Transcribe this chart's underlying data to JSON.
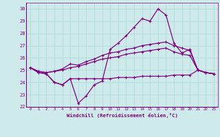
{
  "xlabel": "Windchill (Refroidissement éolien,°C)",
  "xlim": [
    -0.5,
    23.5
  ],
  "ylim": [
    22,
    30.5
  ],
  "xticks": [
    0,
    1,
    2,
    3,
    4,
    5,
    6,
    7,
    8,
    9,
    10,
    11,
    12,
    13,
    14,
    15,
    16,
    17,
    18,
    19,
    20,
    21,
    22,
    23
  ],
  "yticks": [
    22,
    23,
    24,
    25,
    26,
    27,
    28,
    29,
    30
  ],
  "bg_color": "#ceeaea",
  "line_color": "#800080",
  "grid_color": "#a8d8d8",
  "series1_x": [
    0,
    1,
    2,
    3,
    4,
    5,
    6,
    7,
    8,
    9,
    10,
    11,
    12,
    13,
    14,
    15,
    16,
    17,
    18,
    19,
    20,
    21,
    22,
    23
  ],
  "series1_y": [
    25.2,
    24.8,
    24.7,
    24.0,
    23.8,
    24.3,
    22.3,
    22.9,
    23.8,
    24.1,
    26.7,
    27.2,
    27.8,
    28.5,
    29.2,
    29.0,
    30.0,
    29.5,
    27.2,
    26.4,
    26.7,
    25.0,
    24.8,
    24.7
  ],
  "series2_x": [
    0,
    1,
    2,
    3,
    4,
    5,
    6,
    7,
    8,
    9,
    10,
    11,
    12,
    13,
    14,
    15,
    16,
    17,
    18,
    19,
    20,
    21,
    22,
    23
  ],
  "series2_y": [
    25.2,
    24.9,
    24.8,
    24.9,
    25.1,
    25.5,
    25.4,
    25.7,
    25.9,
    26.2,
    26.4,
    26.5,
    26.7,
    26.8,
    27.0,
    27.1,
    27.2,
    27.3,
    27.0,
    26.8,
    26.6,
    25.0,
    24.8,
    24.7
  ],
  "series3_x": [
    0,
    1,
    2,
    3,
    4,
    5,
    6,
    7,
    8,
    9,
    10,
    11,
    12,
    13,
    14,
    15,
    16,
    17,
    18,
    19,
    20,
    21,
    22,
    23
  ],
  "series3_y": [
    25.2,
    24.9,
    24.8,
    24.9,
    25.0,
    25.2,
    25.3,
    25.5,
    25.7,
    25.9,
    26.0,
    26.1,
    26.3,
    26.4,
    26.5,
    26.6,
    26.7,
    26.8,
    26.5,
    26.3,
    26.2,
    25.0,
    24.8,
    24.7
  ],
  "series4_x": [
    0,
    1,
    2,
    3,
    4,
    5,
    6,
    7,
    8,
    9,
    10,
    11,
    12,
    13,
    14,
    15,
    16,
    17,
    18,
    19,
    20,
    21,
    22,
    23
  ],
  "series4_y": [
    25.2,
    24.8,
    24.7,
    24.0,
    23.8,
    24.3,
    24.3,
    24.3,
    24.3,
    24.3,
    24.3,
    24.4,
    24.4,
    24.4,
    24.5,
    24.5,
    24.5,
    24.5,
    24.6,
    24.6,
    24.6,
    25.0,
    24.8,
    24.7
  ]
}
